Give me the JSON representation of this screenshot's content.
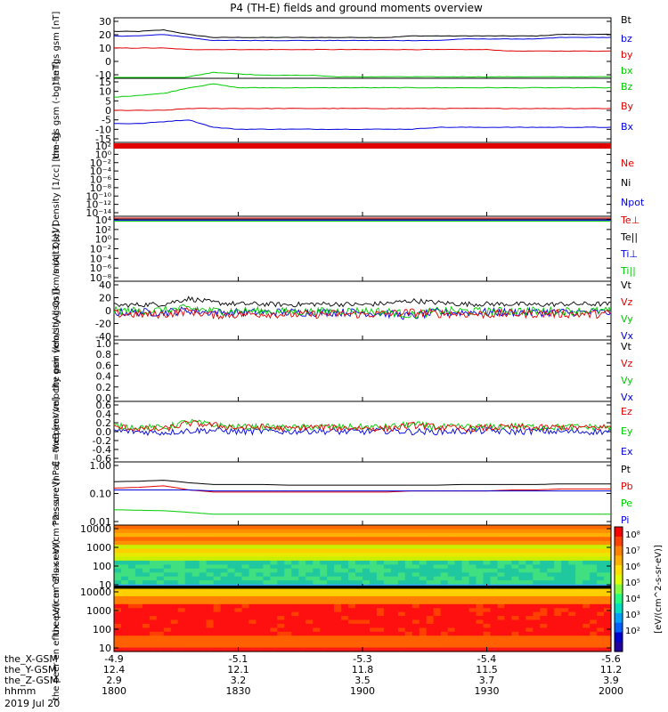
{
  "title": "P4 (TH-E) fields and ground moments overview",
  "date_label": "2019 Jul 20",
  "ephemeris": {
    "row_labels": [
      "the_X-GSM",
      "the_Y-GSM",
      "the_Z-GSM",
      "hhmm"
    ],
    "columns": [
      [
        "-4.9",
        "12.4",
        "2.9",
        "1800"
      ],
      [
        "-5.1",
        "12.1",
        "3.2",
        "1830"
      ],
      [
        "-5.3",
        "11.8",
        "3.5",
        "1900"
      ],
      [
        "-5.4",
        "11.5",
        "3.7",
        "1930"
      ],
      [
        "-5.6",
        "11.2",
        "3.9",
        "2000"
      ]
    ]
  },
  "colors": {
    "black": "#000000",
    "red": "#e00000",
    "green": "#00cc00",
    "blue": "#0000dd"
  },
  "chart_data": [
    {
      "type": "line",
      "ylabel": "the fgs gsm [nT]",
      "yticks": [
        "30",
        "20",
        "10",
        "0",
        "-10"
      ],
      "ylim": [
        -10,
        30
      ],
      "legend": [
        "Bt",
        "bz",
        "by",
        "bx"
      ],
      "series": [
        {
          "name": "Bt",
          "color": "black",
          "values": [
            21,
            21,
            22,
            19,
            17,
            17,
            17,
            17,
            17,
            17,
            17,
            17,
            18,
            18,
            18,
            18,
            18,
            18,
            19,
            19,
            19
          ]
        },
        {
          "name": "bz",
          "color": "blue",
          "values": [
            18,
            18,
            19,
            17,
            15,
            15,
            15,
            15,
            15,
            15,
            15,
            15,
            15,
            15,
            16,
            16,
            16,
            16,
            17,
            17,
            17
          ]
        },
        {
          "name": "by",
          "color": "red",
          "values": [
            10,
            10,
            10,
            9,
            9,
            9,
            9,
            9,
            9,
            9,
            9,
            9,
            9,
            9,
            9,
            9,
            8,
            8,
            8,
            8,
            8
          ]
        },
        {
          "name": "bx",
          "color": "green",
          "values": [
            -11,
            -11,
            -11,
            -9,
            -6,
            -7,
            -8,
            -8,
            -8,
            -9,
            -9,
            -9,
            -9,
            -9,
            -9,
            -9,
            -9,
            -9,
            -9,
            -9,
            -9
          ]
        }
      ]
    },
    {
      "type": "line",
      "ylabel": "the fgs gsm (-bg) [nT]",
      "yticks": [
        "15",
        "10",
        "5",
        "0",
        "-5",
        "-10",
        "-15"
      ],
      "ylim": [
        -18,
        16
      ],
      "legend": [
        "Bz",
        "By",
        "Bx"
      ],
      "series": [
        {
          "name": "Bz",
          "color": "green",
          "values": [
            6,
            7,
            8,
            11,
            13,
            11,
            11,
            11,
            11,
            11,
            11,
            11,
            11,
            11,
            11,
            11,
            11,
            11,
            11,
            11,
            11
          ]
        },
        {
          "name": "By",
          "color": "red",
          "values": [
            -1,
            -1,
            -1,
            0,
            0,
            0,
            0,
            0,
            0,
            0,
            0,
            0,
            0,
            0,
            0,
            0,
            0,
            0,
            0,
            0,
            0
          ]
        },
        {
          "name": "Bx",
          "color": "blue",
          "values": [
            -8,
            -8,
            -7,
            -6,
            -10,
            -11,
            -11,
            -11,
            -11,
            -11,
            -11,
            -11,
            -11,
            -10,
            -10,
            -10,
            -10,
            -10,
            -10,
            -10,
            -10
          ]
        }
      ]
    },
    {
      "type": "line",
      "ylabel": "Density [1/cc] [cm-3]",
      "yticks": [
        "10²",
        "10⁰",
        "10⁻²",
        "10⁻⁴",
        "10⁻⁶",
        "10⁻⁸",
        "10⁻¹⁰",
        "10⁻¹²",
        "10⁻¹⁴"
      ],
      "ylim": [
        -14,
        3
      ],
      "scale": "log",
      "legend": [
        "Ne",
        "Ni",
        "Npot"
      ],
      "series": [
        {
          "name": "Ne",
          "color": "red",
          "values": [
            0.5,
            0.5
          ]
        },
        {
          "name": "Ni",
          "color": "black",
          "values": [
            0.4,
            0.4
          ]
        },
        {
          "name": "Npot",
          "color": "blue",
          "values": [
            0.3,
            0.3
          ]
        }
      ]
    },
    {
      "type": "line",
      "ylabel": "moqt3 [eV]",
      "yticks": [
        "10⁴",
        "10²",
        "10⁰",
        "10⁻²",
        "10⁻⁴",
        "10⁻⁶",
        "10⁻⁸"
      ],
      "ylim": [
        -9,
        4
      ],
      "scale": "log",
      "legend": [
        "Te⊥",
        "Te||",
        "Ti⊥",
        "Ti||"
      ],
      "series": [
        {
          "name": "Te⊥",
          "color": "red",
          "values": [
            3.2,
            3.2
          ]
        },
        {
          "name": "Te||",
          "color": "black",
          "values": [
            3.3,
            3.3
          ]
        },
        {
          "name": "Ti⊥",
          "color": "blue",
          "values": [
            3.5,
            3.5
          ]
        },
        {
          "name": "Ti||",
          "color": "green",
          "values": [
            3.6,
            3.6
          ]
        }
      ]
    },
    {
      "type": "line",
      "ylabel": "the peir velocity gsm [km/s (All Qs)]",
      "yticks": [
        "40",
        "20",
        "0",
        "-20",
        "-40"
      ],
      "ylim": [
        -40,
        45
      ],
      "legend": [
        "Vt",
        "Vz",
        "Vy",
        "Vx"
      ],
      "series": [
        {
          "name": "Vt",
          "color": "black",
          "values": [
            10,
            11,
            12,
            20,
            14,
            12,
            12,
            11,
            12,
            12,
            11,
            13,
            17,
            14,
            12,
            12,
            12,
            11,
            12,
            12,
            12
          ]
        },
        {
          "name": "Vx",
          "color": "blue",
          "values": [
            0,
            0,
            0,
            3,
            0,
            0,
            0,
            0,
            0,
            0,
            0,
            -2,
            -6,
            0,
            0,
            0,
            0,
            0,
            0,
            0,
            0
          ]
        },
        {
          "name": "Vy",
          "color": "green",
          "values": [
            2,
            2,
            3,
            6,
            2,
            2,
            2,
            1,
            1,
            2,
            2,
            1,
            -4,
            2,
            2,
            1,
            2,
            2,
            2,
            2,
            2
          ]
        },
        {
          "name": "Vz",
          "color": "red",
          "values": [
            -2,
            -3,
            -3,
            2,
            -4,
            -3,
            -2,
            -3,
            -3,
            -2,
            -3,
            -2,
            0,
            -2,
            -2,
            -3,
            -2,
            -2,
            -2,
            -3,
            -2
          ]
        }
      ]
    },
    {
      "type": "line",
      "ylabel": "the peer velocity gsm [km/s (All Qs)]",
      "yticks": [
        "1.0",
        "0.8",
        "0.6",
        "0.4",
        "0.2",
        "0.0"
      ],
      "ylim": [
        0,
        1
      ],
      "legend": [
        "Vt",
        "Vz",
        "Vy",
        "Vx"
      ],
      "series": []
    },
    {
      "type": "line",
      "ylabel": "E=-VxB [mV/m]",
      "yticks": [
        "0.6",
        "0.4",
        "0.2",
        "0.0",
        "-0.2",
        "-0.4",
        "-0.6"
      ],
      "ylim": [
        -0.65,
        0.65
      ],
      "legend": [
        "Ez",
        "Ey",
        "Ex"
      ],
      "series": [
        {
          "name": "Ex",
          "color": "blue",
          "values": [
            0.02,
            0.0,
            -0.02,
            0.02,
            0.03,
            0.0,
            0.01,
            0.0,
            0.02,
            0.0,
            0.0,
            0.02,
            0.0,
            0.0,
            0.01,
            0.02,
            0.0,
            0.01,
            0.0,
            0.0,
            0.0
          ]
        },
        {
          "name": "Ey",
          "color": "green",
          "values": [
            0.12,
            0.1,
            0.08,
            0.22,
            0.14,
            0.1,
            0.1,
            0.08,
            0.1,
            0.1,
            0.1,
            0.1,
            0.16,
            0.1,
            0.1,
            0.1,
            0.12,
            0.1,
            0.1,
            0.1,
            0.1
          ]
        },
        {
          "name": "Ez",
          "color": "red",
          "values": [
            0.1,
            0.06,
            0.05,
            0.18,
            0.14,
            0.08,
            0.1,
            0.06,
            0.1,
            0.08,
            0.08,
            0.06,
            0.14,
            0.1,
            0.06,
            0.08,
            0.1,
            0.08,
            0.1,
            0.08,
            0.1
          ]
        }
      ]
    },
    {
      "type": "line",
      "ylabel": "Pressure [nPa]",
      "yticks": [
        "1.00",
        "0.10",
        "0.01"
      ],
      "ylim": [
        0.008,
        1.2
      ],
      "scale": "log",
      "legend": [
        "Pt",
        "Pb",
        "Pe",
        "Pi"
      ],
      "series": [
        {
          "name": "Pt",
          "color": "black",
          "values": [
            0.25,
            0.26,
            0.28,
            0.23,
            0.2,
            0.2,
            0.2,
            0.19,
            0.19,
            0.19,
            0.19,
            0.19,
            0.19,
            0.19,
            0.2,
            0.2,
            0.2,
            0.2,
            0.21,
            0.21,
            0.21
          ]
        },
        {
          "name": "Pb",
          "color": "red",
          "values": [
            0.15,
            0.16,
            0.18,
            0.13,
            0.11,
            0.11,
            0.11,
            0.11,
            0.11,
            0.11,
            0.11,
            0.11,
            0.12,
            0.12,
            0.12,
            0.12,
            0.13,
            0.13,
            0.14,
            0.14,
            0.14
          ]
        },
        {
          "name": "Pi",
          "color": "blue",
          "values": [
            0.13,
            0.13,
            0.13,
            0.13,
            0.12,
            0.12,
            0.12,
            0.12,
            0.12,
            0.12,
            0.12,
            0.12,
            0.12,
            0.12,
            0.12,
            0.12,
            0.12,
            0.12,
            0.12,
            0.12,
            0.12
          ]
        },
        {
          "name": "Pe",
          "color": "green",
          "values": [
            0.027,
            0.026,
            0.025,
            0.022,
            0.019,
            0.019,
            0.019,
            0.019,
            0.019,
            0.019,
            0.019,
            0.019,
            0.019,
            0.019,
            0.019,
            0.019,
            0.019,
            0.019,
            0.019,
            0.019,
            0.019
          ]
        }
      ]
    },
    {
      "type": "heatmap",
      "ylabel": "the peir en eflux eV/(cm^2-s-sr-eV)",
      "yticks": [
        "10000",
        "1000",
        "100",
        "10"
      ],
      "scale": "log",
      "ylim": [
        5,
        20000
      ],
      "colorbar_ticks": [
        "10⁸",
        "10⁷",
        "10⁶",
        "10⁵",
        "10⁴",
        "10³",
        "10²"
      ],
      "colorbar_label": "[eV/(cm^2-s-sr-eV)]"
    },
    {
      "type": "heatmap",
      "ylabel": "the peer en eflux eV/(cm^2-s-sr-eV)",
      "yticks": [
        "10000",
        "1000",
        "100",
        "10"
      ],
      "scale": "log",
      "ylim": [
        5,
        20000
      ],
      "colorbar_ticks": [
        "10⁸",
        "10⁷",
        "10⁶",
        "10⁵",
        "10⁴",
        "10³",
        "10²"
      ],
      "colorbar_label": "[eV/(cm^2-s-sr-eV)]"
    }
  ]
}
